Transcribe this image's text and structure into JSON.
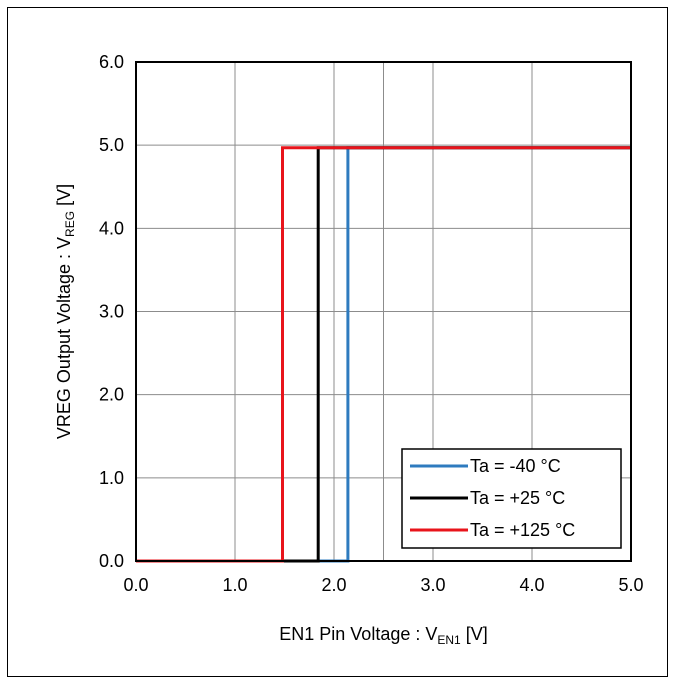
{
  "chart_data": {
    "type": "line",
    "title": "",
    "xlabel": "EN1 Pin Voltage : V",
    "xlabel_sub": "EN1",
    "xlabel_unit": " [V]",
    "ylabel": "VREG Output Voltage : V",
    "ylabel_sub": "REG",
    "ylabel_unit": " [V]",
    "xlim": [
      0,
      5
    ],
    "ylim": [
      0,
      6
    ],
    "xticks": [
      "0.0",
      "1.0",
      "2.0",
      "3.0",
      "4.0",
      "5.0"
    ],
    "yticks": [
      "0.0",
      "1.0",
      "2.0",
      "3.0",
      "4.0",
      "5.0",
      "6.0"
    ],
    "grid": true,
    "legend_position": "bottom-right",
    "series": [
      {
        "name": "Ta = -40 °C",
        "color": "#2e7bbf",
        "x": [
          0,
          2.14,
          2.14,
          5
        ],
        "y": [
          0,
          0,
          4.97,
          4.97
        ]
      },
      {
        "name": "Ta = +25 °C",
        "color": "#000000",
        "x": [
          0,
          1.84,
          1.84,
          5
        ],
        "y": [
          0,
          0,
          4.97,
          4.97
        ]
      },
      {
        "name": "Ta = +125 °C",
        "color": "#e8141b",
        "x": [
          0,
          1.48,
          1.48,
          5
        ],
        "y": [
          0,
          0,
          4.97,
          4.97
        ]
      }
    ]
  }
}
